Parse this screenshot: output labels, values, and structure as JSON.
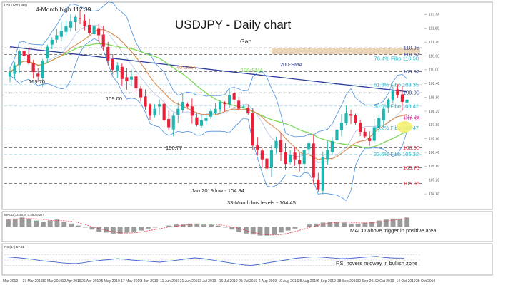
{
  "header": {
    "symbol_label": "USDJPY Daily",
    "title": "USDJPY - Daily chart"
  },
  "colors": {
    "bull": "#1fb5b0",
    "bear": "#e8213b",
    "sma200": "#2c3e9c",
    "sma100": "#7ed957",
    "sma40": "#d98a4b",
    "bollinger": "#4a8fe0",
    "blue_label": "#2c3e9c",
    "teal_label": "#33b2c2",
    "red_label": "#e8213b",
    "magenta_label": "#e02aa6",
    "gap_band": "#cfa571",
    "highlight": "#f4f06a"
  },
  "chart_data": [
    {
      "type": "candlestick",
      "title": "USDJPY - Daily chart",
      "ylim": [
        104.2,
        112.6
      ],
      "y_ticks": [
        "112.39",
        "111.80",
        "111.20",
        "110.60",
        "110.00",
        "109.40",
        "108.80",
        "108.20",
        "107.60",
        "107.00",
        "106.40",
        "105.80",
        "105.20",
        "104.60"
      ],
      "x_ticks": [
        "Mar 2019",
        "27 Mar 2019",
        "10 Mar 2019",
        "12 Apr 2019",
        "26 Apr 2019",
        "5 May 2019",
        "17 May 2019",
        "3 Jun 2019",
        "11 Jun 2019",
        "21 Jun 2019",
        "3 Jul 2019",
        "16 Jul 2019",
        "25 Jul 2019",
        "2 Aug 2019",
        "19 Aug 2019",
        "28 Aug 2019",
        "6 Sep 2019",
        "18 Sep 2019",
        "30 Sep 2019",
        "9 Oct 2019",
        "14 Oct 2019",
        "28 Oct 2019"
      ],
      "key_close_path": [
        109.9,
        110.2,
        110.8,
        110.6,
        110.3,
        109.9,
        109.7,
        110.4,
        111.0,
        111.3,
        111.5,
        111.7,
        111.9,
        112.1,
        112.3,
        112.2,
        111.9,
        111.6,
        111.9,
        111.5,
        111.0,
        110.4,
        110.0,
        110.2,
        109.6,
        109.5,
        109.7,
        109.2,
        108.8,
        108.4,
        108.0,
        108.3,
        108.5,
        107.8,
        107.5,
        108.0,
        108.3,
        108.6,
        108.4,
        108.0,
        107.6,
        107.8,
        107.9,
        108.2,
        108.3,
        108.6,
        108.5,
        108.9,
        108.7,
        108.3,
        108.4,
        108.1,
        106.7,
        106.5,
        106.1,
        105.7,
        106.5,
        106.9,
        106.4,
        105.9,
        106.3,
        106.1,
        105.9,
        106.5,
        106.8,
        105.3,
        104.8,
        106.2,
        106.5,
        106.9,
        107.4,
        107.7,
        108.1,
        108.0,
        107.7,
        107.3,
        107.1,
        106.9,
        107.5,
        107.9,
        108.3,
        108.7,
        109.1,
        108.9,
        108.6,
        108.7
      ],
      "horizontal_levels": [
        {
          "label": "110.95",
          "value": 110.95,
          "color": "blue"
        },
        {
          "label": "110.67",
          "value": 110.67,
          "color": "blue"
        },
        {
          "label": "76.4% Fibo 110.50",
          "value": 110.5,
          "color": "teal"
        },
        {
          "label": "109.92",
          "value": 109.92,
          "color": "blue"
        },
        {
          "label": "61.8% Fibo 109.35",
          "value": 109.35,
          "color": "teal"
        },
        {
          "label": "109.00",
          "value": 109.0,
          "color": "blue"
        },
        {
          "label": "50.0% Fibo 108.42",
          "value": 108.42,
          "color": "teal"
        },
        {
          "label": "107.95",
          "value": 107.95,
          "color": "magenta"
        },
        {
          "label": "107.88",
          "value": 107.88,
          "color": "magenta"
        },
        {
          "label": "38.2% Fibo 107.47",
          "value": 107.47,
          "color": "teal"
        },
        {
          "label": "106.60",
          "value": 106.6,
          "color": "red"
        },
        {
          "label": "23.6% Fibo 106.32",
          "value": 106.32,
          "color": "teal"
        },
        {
          "label": "105.73",
          "value": 105.73,
          "color": "red"
        },
        {
          "label": "105.05",
          "value": 105.05,
          "color": "red"
        }
      ],
      "annotations": {
        "four_month_high": "4-Month high 112.39",
        "gap": "Gap",
        "sma200": "200-SMA",
        "sma100": "100-SMA",
        "sma40": "40-SMA",
        "lvl_109_70": "109.70",
        "lvl_109_00": "109.00",
        "lvl_106_77": "106.77",
        "jan_low": "Jan 2019 low - 104.84",
        "low_33m": "33-Month low levels - 104.45"
      }
    },
    {
      "type": "histogram",
      "name": "MACD",
      "header_label": "MACD(12,26,9) 0.350 0.274",
      "annotation": "MACD above trigger in positive area",
      "values": [
        0.7,
        0.8,
        0.9,
        0.8,
        0.6,
        0.5,
        0.6,
        0.7,
        0.5,
        0.3,
        0.1,
        -0.1,
        -0.3,
        -0.5,
        -0.6,
        -0.7,
        -0.7,
        -0.6,
        -0.5,
        -0.4,
        -0.2,
        -0.1,
        0.0,
        0.1,
        0.2,
        0.2,
        0.3,
        0.3,
        0.2,
        0.2,
        0.1,
        -0.1,
        -0.3,
        -0.5,
        -0.7,
        -0.8,
        -0.9,
        -0.9,
        -0.8,
        -0.6,
        -0.4,
        -0.2,
        0.0,
        0.2,
        0.3,
        0.4,
        0.5,
        0.5,
        0.4,
        0.3,
        0.3,
        0.4,
        0.5,
        0.6,
        0.7,
        0.8,
        0.8,
        0.9
      ]
    },
    {
      "type": "line",
      "name": "RSI",
      "header_label": "RSI(14) 57.31",
      "annotation": "RSI hovers midway in bullish zone",
      "ylim": [
        0,
        100
      ],
      "values": [
        62,
        60,
        58,
        55,
        52,
        48,
        45,
        43,
        40,
        38,
        37,
        40,
        44,
        47,
        50,
        52,
        55,
        53,
        50,
        48,
        46,
        44,
        42,
        45,
        48,
        51,
        55,
        58,
        56,
        52,
        48,
        44,
        40,
        36,
        32,
        30,
        33,
        38,
        42,
        46,
        50,
        55,
        58,
        60,
        62,
        61,
        59,
        57,
        55,
        56,
        58,
        60,
        62,
        64,
        60,
        58,
        57,
        57
      ]
    }
  ]
}
